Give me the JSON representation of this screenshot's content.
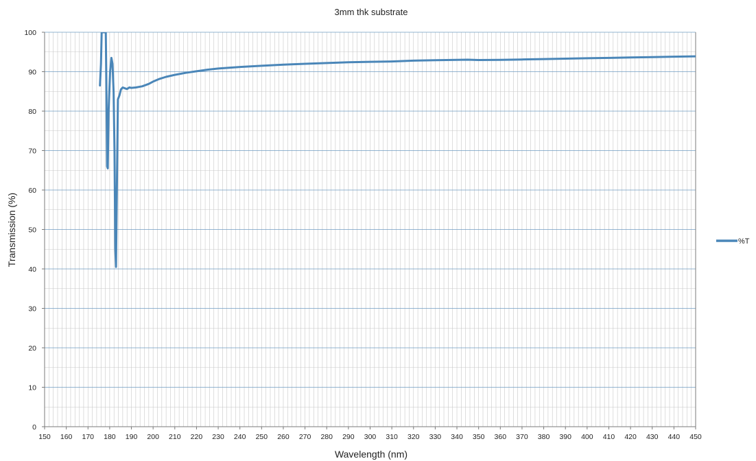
{
  "chart_data": {
    "type": "line",
    "title": "3mm thk substrate",
    "xlabel": "Wavelength (nm)",
    "ylabel": "Transmission (%)",
    "xlim": [
      150,
      450
    ],
    "ylim": [
      0,
      100
    ],
    "x_ticks": [
      150,
      160,
      170,
      180,
      190,
      200,
      210,
      220,
      230,
      240,
      250,
      260,
      270,
      280,
      290,
      300,
      310,
      320,
      330,
      340,
      350,
      360,
      370,
      380,
      390,
      400,
      410,
      420,
      430,
      440,
      450
    ],
    "y_ticks": [
      0,
      10,
      20,
      30,
      40,
      50,
      60,
      70,
      80,
      90,
      100
    ],
    "grid": true,
    "legend": "right",
    "series": [
      {
        "name": "%T",
        "color": "#4a86b8",
        "points": [
          [
            175.5,
            86.5
          ],
          [
            176.0,
            92
          ],
          [
            176.3,
            100
          ],
          [
            178.2,
            100
          ],
          [
            178.5,
            85
          ],
          [
            178.8,
            66
          ],
          [
            179.1,
            65.5
          ],
          [
            179.5,
            80
          ],
          [
            180.2,
            90
          ],
          [
            180.8,
            93.5
          ],
          [
            181.3,
            92
          ],
          [
            181.8,
            85
          ],
          [
            182.2,
            70
          ],
          [
            182.6,
            45
          ],
          [
            182.9,
            40.5
          ],
          [
            183.2,
            55
          ],
          [
            183.5,
            70
          ],
          [
            183.8,
            83
          ],
          [
            184.5,
            84
          ],
          [
            185.2,
            85.5
          ],
          [
            186,
            86
          ],
          [
            187,
            85.8
          ],
          [
            188,
            85.6
          ],
          [
            189,
            86
          ],
          [
            190,
            85.9
          ],
          [
            192,
            86
          ],
          [
            195,
            86.3
          ],
          [
            198,
            86.9
          ],
          [
            200,
            87.5
          ],
          [
            203,
            88.2
          ],
          [
            206,
            88.7
          ],
          [
            210,
            89.2
          ],
          [
            215,
            89.7
          ],
          [
            220,
            90.1
          ],
          [
            225,
            90.5
          ],
          [
            230,
            90.8
          ],
          [
            240,
            91.2
          ],
          [
            250,
            91.5
          ],
          [
            260,
            91.8
          ],
          [
            270,
            92.0
          ],
          [
            280,
            92.2
          ],
          [
            290,
            92.4
          ],
          [
            300,
            92.5
          ],
          [
            310,
            92.6
          ],
          [
            320,
            92.8
          ],
          [
            330,
            92.9
          ],
          [
            340,
            93.0
          ],
          [
            345,
            93.05
          ],
          [
            350,
            92.95
          ],
          [
            360,
            93.0
          ],
          [
            370,
            93.1
          ],
          [
            380,
            93.2
          ],
          [
            390,
            93.3
          ],
          [
            400,
            93.4
          ],
          [
            410,
            93.5
          ],
          [
            420,
            93.6
          ],
          [
            430,
            93.7
          ],
          [
            440,
            93.8
          ],
          [
            450,
            93.9
          ]
        ]
      }
    ]
  }
}
